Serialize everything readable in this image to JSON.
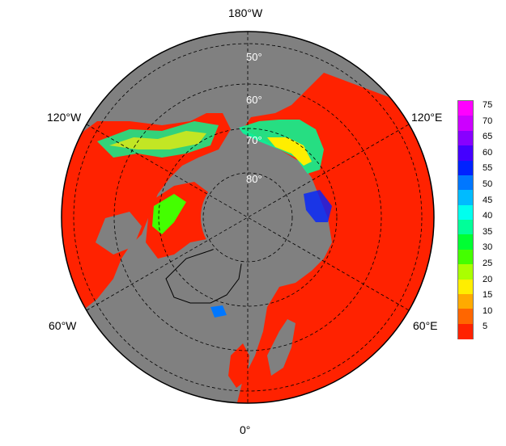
{
  "map": {
    "projection": "north-polar-stereographic",
    "lon_labels": {
      "top": "180°W",
      "bottom": "0°",
      "upper_left": "120°W",
      "upper_right": "120°E",
      "lower_left": "60°W",
      "lower_right": "60°E"
    },
    "lat_labels": [
      "50°",
      "60°",
      "70°",
      "80°"
    ],
    "colors": {
      "land_ocean": "#808080",
      "dominant": "#ff2200",
      "border": "#000000"
    }
  },
  "colorbar": {
    "ticks": [
      "75",
      "70",
      "65",
      "60",
      "55",
      "50",
      "45",
      "40",
      "35",
      "30",
      "25",
      "20",
      "15",
      "10",
      "5"
    ],
    "colors": [
      "#ff00ff",
      "#cc00ff",
      "#8800ff",
      "#4400ff",
      "#0022ff",
      "#0077ff",
      "#00bbff",
      "#00ffee",
      "#00ff99",
      "#00ff33",
      "#44ff00",
      "#aaff00",
      "#ffee00",
      "#ffaa00",
      "#ff6600",
      "#ff2200"
    ]
  }
}
